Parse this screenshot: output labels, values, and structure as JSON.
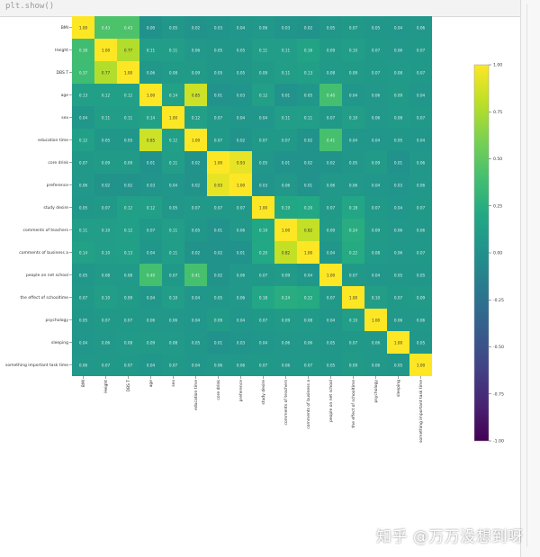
{
  "notebook": {
    "code_line": "plt.show()"
  },
  "watermark": "知乎 @万万没想到呀",
  "chart_data": {
    "type": "heatmap",
    "colormap": "viridis",
    "labels": [
      "BMI",
      "Height",
      "DBS T",
      "age",
      "sex",
      "education time",
      "core drink",
      "preference",
      "study desire",
      "comments of teachers",
      "comments of business a",
      "people on net school",
      "the effect of schooltime",
      "psychology",
      "sleeping",
      "something important task time"
    ],
    "values": [
      [
        1.0,
        0.43,
        0.43,
        0.0,
        0.05,
        0.02,
        0.03,
        0.04,
        0.06,
        0.03,
        0.02,
        0.05,
        0.07,
        0.05,
        0.04,
        0.06
      ],
      [
        0.38,
        1.0,
        0.77,
        0.11,
        0.11,
        0.06,
        0.05,
        0.05,
        0.11,
        0.11,
        0.16,
        0.09,
        0.1,
        0.07,
        0.06,
        0.07
      ],
      [
        0.37,
        0.77,
        1.0,
        0.06,
        0.08,
        0.09,
        0.05,
        0.05,
        0.09,
        0.11,
        0.13,
        0.08,
        0.09,
        0.07,
        0.08,
        0.07
      ],
      [
        0.13,
        0.12,
        0.12,
        1.0,
        0.14,
        0.85,
        0.01,
        0.03,
        0.12,
        0.01,
        0.05,
        0.4,
        0.04,
        0.06,
        0.09,
        0.04
      ],
      [
        0.04,
        0.11,
        0.11,
        0.14,
        1.0,
        0.12,
        0.07,
        0.04,
        0.04,
        0.11,
        0.11,
        0.07,
        0.1,
        0.06,
        0.08,
        0.07
      ],
      [
        0.12,
        0.05,
        0.05,
        0.85,
        0.12,
        1.0,
        0.07,
        0.02,
        0.07,
        0.07,
        0.02,
        0.41,
        0.04,
        0.04,
        0.05,
        0.04
      ],
      [
        0.07,
        0.09,
        0.09,
        0.01,
        0.11,
        0.02,
        1.0,
        0.93,
        0.05,
        0.01,
        0.02,
        0.02,
        0.05,
        0.09,
        0.01,
        0.06
      ],
      [
        0.06,
        0.02,
        0.02,
        0.03,
        0.04,
        0.02,
        0.93,
        1.0,
        0.03,
        0.06,
        0.01,
        0.06,
        0.06,
        0.04,
        0.03,
        0.06
      ],
      [
        0.05,
        0.07,
        0.12,
        0.12,
        0.05,
        0.07,
        0.07,
        0.07,
        1.0,
        0.19,
        0.2,
        0.07,
        0.18,
        0.07,
        0.04,
        0.07
      ],
      [
        0.11,
        0.1,
        0.12,
        0.07,
        0.11,
        0.05,
        0.01,
        0.06,
        0.19,
        1.0,
        0.82,
        0.09,
        0.24,
        0.09,
        0.06,
        0.06
      ],
      [
        0.14,
        0.1,
        0.13,
        0.04,
        0.11,
        0.02,
        0.02,
        0.01,
        0.2,
        0.82,
        1.0,
        0.04,
        0.22,
        0.08,
        0.06,
        0.07
      ],
      [
        0.05,
        0.08,
        0.08,
        0.4,
        0.07,
        0.41,
        0.02,
        0.06,
        0.07,
        0.09,
        0.04,
        1.0,
        0.07,
        0.04,
        0.05,
        0.05
      ],
      [
        0.07,
        0.1,
        0.09,
        0.04,
        0.1,
        0.04,
        0.05,
        0.06,
        0.18,
        0.24,
        0.22,
        0.07,
        1.0,
        0.1,
        0.07,
        0.09
      ],
      [
        0.05,
        0.07,
        0.07,
        0.06,
        0.06,
        0.04,
        0.09,
        0.04,
        0.07,
        0.09,
        0.08,
        0.04,
        0.1,
        1.0,
        0.06,
        0.06
      ],
      [
        0.04,
        0.06,
        0.08,
        0.09,
        0.08,
        0.05,
        0.01,
        0.03,
        0.04,
        0.06,
        0.06,
        0.05,
        0.07,
        0.06,
        1.0,
        0.05
      ],
      [
        0.06,
        0.07,
        0.07,
        0.04,
        0.07,
        0.04,
        0.06,
        0.06,
        0.07,
        0.06,
        0.07,
        0.05,
        0.09,
        0.06,
        0.05,
        1.0
      ]
    ],
    "vmin": -1.0,
    "vmax": 1.0,
    "colorbar_ticks": [
      "1.00",
      "0.75",
      "0.50",
      "0.25",
      "0.00",
      "-0.25",
      "-0.50",
      "-0.75",
      "-1.00"
    ],
    "title": "",
    "xlabel": "",
    "ylabel": ""
  }
}
